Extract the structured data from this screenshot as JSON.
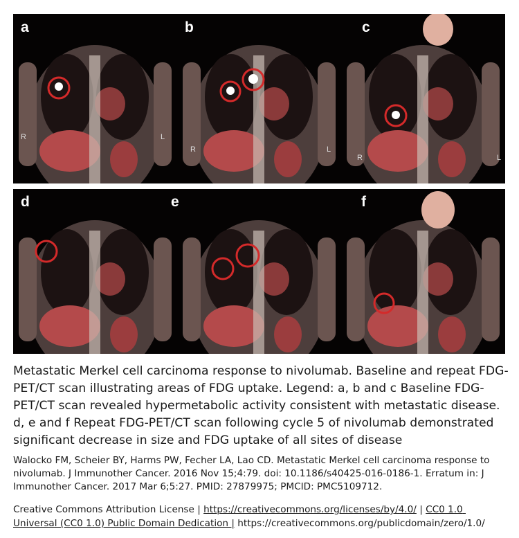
{
  "figure": {
    "panels": [
      {
        "label": "a",
        "orientation": [
          "R",
          "L"
        ]
      },
      {
        "label": "b",
        "orientation": [
          "R",
          "L"
        ]
      },
      {
        "label": "c",
        "orientation": [
          "R",
          "L"
        ]
      },
      {
        "label": "d"
      },
      {
        "label": "e"
      },
      {
        "label": "f"
      }
    ],
    "caption": "Metastatic Merkel cell carcinoma response to nivolumab. Baseline and repeat FDG-PET/CT scan illustrating areas of FDG uptake. Legend: a, b and c Baseline FDG-PET/CT scan revealed hypermetabolic activity consistent with metastatic disease. d, e and f Repeat FDG-PET/CT scan following cycle 5 of nivolumab demonstrated significant decrease in size and FDG uptake of all sites of disease",
    "citation": "Walocko FM, Scheier BY, Harms PW, Fecher LA, Lao CD. Metastatic Merkel cell carcinoma response to nivolumab. J Immunother Cancer. 2016 Nov 15;4:79. doi: 10.1186/s40425-016-0186-1. Erratum in: J Immunother Cancer. 2017 Mar 6;5:27. PMID: 27879975; PMCID: PMC5109712.",
    "license": [
      "Creative Commons Attribution License | ",
      "https://creativecommons.org/licenses/by/4.0/",
      " | ",
      "CC0 1.0 Universal (CC0 1.0) Public Domain Dedication |",
      " https://creativecommons.org/publicdomain/zero/1.0/"
    ]
  }
}
